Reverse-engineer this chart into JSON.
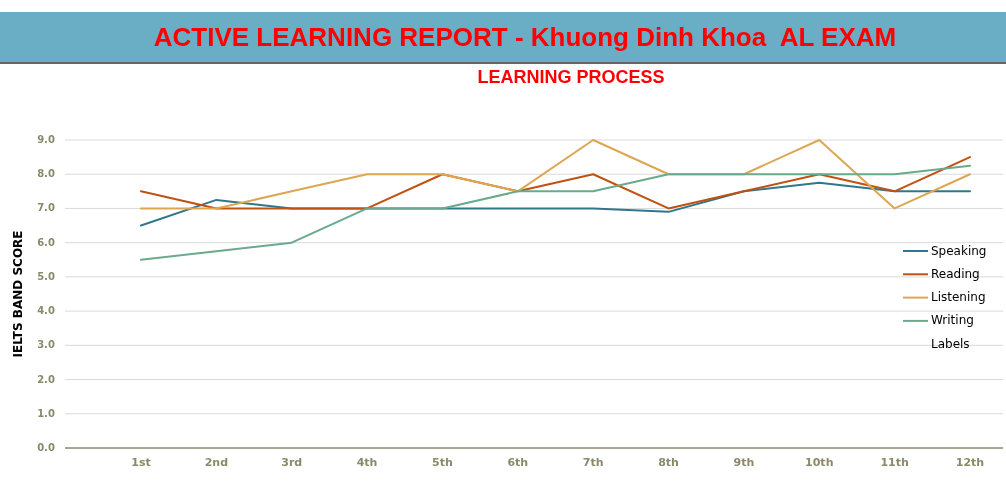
{
  "chart_data": {
    "type": "line",
    "title": "ACTIVE LEARNING REPORT - Khuong Dinh Khoa  AL EXAM",
    "subtitle": "LEARNING PROCESS",
    "ylabel": "IELTS BAND SCORE",
    "categories": [
      "1st",
      "2nd",
      "3rd",
      "4th",
      "5th",
      "6th",
      "7th",
      "8th",
      "9th",
      "10th",
      "11th",
      "12th"
    ],
    "series": [
      {
        "name": "Speaking",
        "color": "#31768f",
        "values": [
          6.5,
          7.25,
          7,
          7,
          7,
          7,
          7,
          6.9,
          7.5,
          7.75,
          7.5,
          7.5
        ]
      },
      {
        "name": "Reading",
        "color": "#bf5112",
        "values": [
          7.5,
          7,
          7,
          7,
          8,
          7.5,
          8,
          7,
          7.5,
          8,
          7.5,
          8.5
        ]
      },
      {
        "name": "Listening",
        "color": "#dda651",
        "values": [
          7,
          7,
          7.5,
          8,
          8,
          7.5,
          9,
          8,
          8,
          9,
          7,
          8
        ]
      },
      {
        "name": "Writing",
        "color": "#6aaa8c",
        "values": [
          5.5,
          5.75,
          6,
          7,
          7,
          7.5,
          7.5,
          8,
          8,
          8,
          8,
          8.25
        ]
      },
      {
        "name": "Labels",
        "values": [
          null,
          null,
          null,
          null,
          null,
          null,
          null,
          null,
          null,
          null,
          null,
          null
        ]
      }
    ],
    "ylim": [
      0,
      9
    ],
    "yticks": [
      {
        "value": 0,
        "label": "0.0"
      },
      {
        "value": 1,
        "label": "1.0"
      },
      {
        "value": 2,
        "label": "2.0"
      },
      {
        "value": 3,
        "label": "3.0"
      },
      {
        "value": 4,
        "label": "4.0"
      },
      {
        "value": 5,
        "label": "5.0"
      },
      {
        "value": 6,
        "label": "6.0"
      },
      {
        "value": 7,
        "label": "7.0"
      },
      {
        "value": 8,
        "label": "8.0"
      },
      {
        "value": 9,
        "label": "9.0"
      }
    ],
    "grid": "y",
    "legend": "right",
    "marker": "none",
    "line_style": "solid"
  }
}
